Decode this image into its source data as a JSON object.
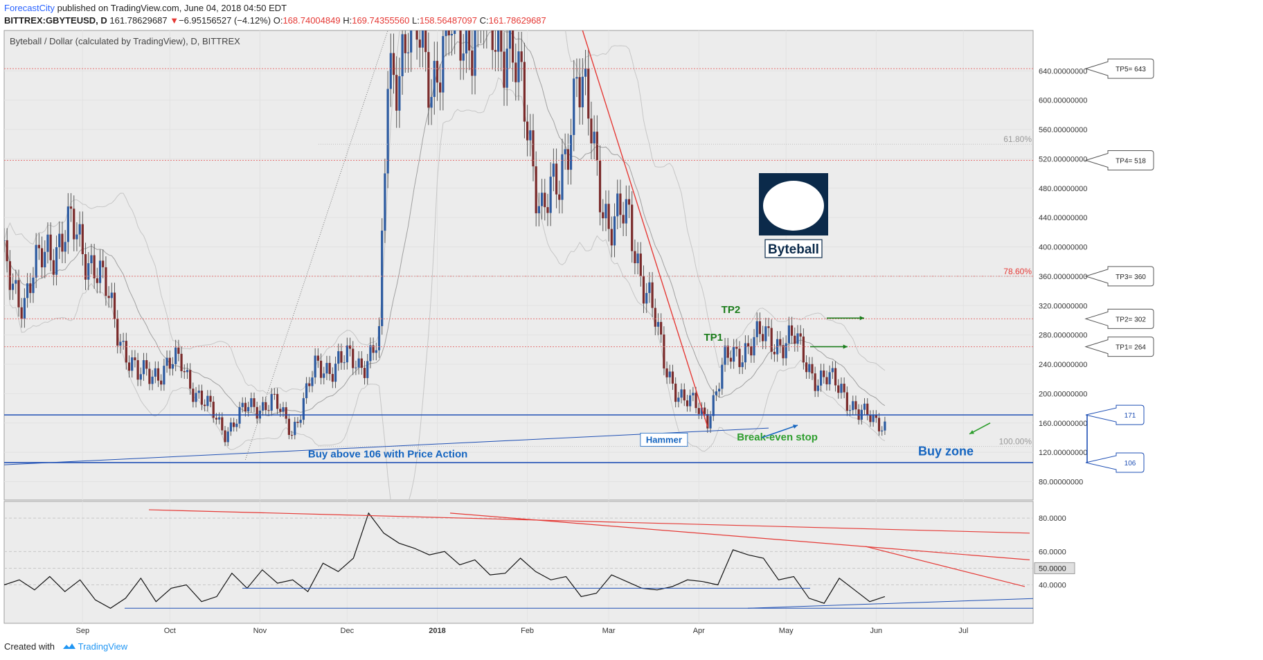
{
  "header": {
    "author": "ForecastCity",
    "published_text": "published on TradingView.com, June 04, 2018 04:50 EDT",
    "symbol": "BITTREX:GBYTEUSD, D",
    "last": "161.78629687",
    "change_arrow": "▼",
    "change": "−6.95156527 (−4.12%)",
    "o_label": "O:",
    "o_value": "168.74004849",
    "h_label": "H:",
    "h_value": "169.74355560",
    "l_label": "L:",
    "l_value": "158.56487097",
    "c_label": "C:",
    "c_value": "161.78629687"
  },
  "footer": {
    "created_with": "Created with",
    "brand": "TradingView"
  },
  "chart_data": {
    "type": "candlestick",
    "title": "Byteball / Dollar (calculated by TradingView), D, BITTREX",
    "logo_text": "Byteball",
    "price_axis": {
      "ylim": [
        55,
        695
      ],
      "ticks": [
        "80.00000000",
        "120.00000000",
        "160.00000000",
        "200.00000000",
        "240.00000000",
        "280.00000000",
        "320.00000000",
        "360.00000000",
        "400.00000000",
        "440.00000000",
        "480.00000000",
        "520.00000000",
        "560.00000000",
        "600.00000000",
        "640.00000000"
      ]
    },
    "x_axis": {
      "range": [
        "2017-08-05",
        "2018-07-25"
      ],
      "labels": [
        {
          "text": "Sep",
          "date": "2017-09-01"
        },
        {
          "text": "Oct",
          "date": "2017-10-01"
        },
        {
          "text": "Nov",
          "date": "2017-11-01"
        },
        {
          "text": "Dec",
          "date": "2017-12-01"
        },
        {
          "text": "2018",
          "date": "2018-01-01",
          "bold": true
        },
        {
          "text": "Feb",
          "date": "2018-02-01"
        },
        {
          "text": "Mar",
          "date": "2018-03-01"
        },
        {
          "text": "Apr",
          "date": "2018-04-01"
        },
        {
          "text": "May",
          "date": "2018-05-01"
        },
        {
          "text": "Jun",
          "date": "2018-06-01"
        },
        {
          "text": "Jul",
          "date": "2018-07-01"
        }
      ]
    },
    "closes": [
      {
        "date": "2017-08-05",
        "close": 370
      },
      {
        "date": "2017-08-12",
        "close": 330
      },
      {
        "date": "2017-08-20",
        "close": 400
      },
      {
        "date": "2017-08-28",
        "close": 420
      },
      {
        "date": "2017-09-05",
        "close": 380
      },
      {
        "date": "2017-09-12",
        "close": 300
      },
      {
        "date": "2017-09-20",
        "close": 220
      },
      {
        "date": "2017-09-28",
        "close": 235
      },
      {
        "date": "2017-10-05",
        "close": 240
      },
      {
        "date": "2017-10-12",
        "close": 190
      },
      {
        "date": "2017-10-20",
        "close": 150
      },
      {
        "date": "2017-10-28",
        "close": 180
      },
      {
        "date": "2017-11-05",
        "close": 190
      },
      {
        "date": "2017-11-12",
        "close": 150
      },
      {
        "date": "2017-11-20",
        "close": 230
      },
      {
        "date": "2017-11-28",
        "close": 245
      },
      {
        "date": "2017-12-05",
        "close": 240
      },
      {
        "date": "2017-12-12",
        "close": 270
      },
      {
        "date": "2017-12-15",
        "close": 620
      },
      {
        "date": "2017-12-22",
        "close": 700
      },
      {
        "date": "2017-12-30",
        "close": 640
      },
      {
        "date": "2018-01-08",
        "close": 700
      },
      {
        "date": "2018-01-16",
        "close": 700
      },
      {
        "date": "2018-01-25",
        "close": 690
      },
      {
        "date": "2018-02-01",
        "close": 560
      },
      {
        "date": "2018-02-06",
        "close": 460
      },
      {
        "date": "2018-02-12",
        "close": 470
      },
      {
        "date": "2018-02-18",
        "close": 650
      },
      {
        "date": "2018-02-25",
        "close": 500
      },
      {
        "date": "2018-03-01",
        "close": 440
      },
      {
        "date": "2018-03-08",
        "close": 430
      },
      {
        "date": "2018-03-15",
        "close": 330
      },
      {
        "date": "2018-03-20",
        "close": 240
      },
      {
        "date": "2018-03-27",
        "close": 190
      },
      {
        "date": "2018-04-04",
        "close": 170
      },
      {
        "date": "2018-04-10",
        "close": 240
      },
      {
        "date": "2018-04-18",
        "close": 270
      },
      {
        "date": "2018-04-25",
        "close": 275
      },
      {
        "date": "2018-05-04",
        "close": 270
      },
      {
        "date": "2018-05-12",
        "close": 220
      },
      {
        "date": "2018-05-20",
        "close": 210
      },
      {
        "date": "2018-05-26",
        "close": 170
      },
      {
        "date": "2018-06-04",
        "close": 162
      }
    ],
    "levels": [
      {
        "price": 643,
        "label": "TP5= 643",
        "style": "red-dotted"
      },
      {
        "price": 518,
        "label": "TP4= 518",
        "style": "red-dotted"
      },
      {
        "price": 360,
        "label": "TP3= 360",
        "style": "red-dotted"
      },
      {
        "price": 302,
        "label": "TP2= 302",
        "style": "red-dotted"
      },
      {
        "price": 264,
        "label": "TP1= 264",
        "style": "red-dotted"
      },
      {
        "price": 171,
        "label": "171",
        "style": "blue-solid"
      },
      {
        "price": 106,
        "label": "106",
        "style": "blue-solid"
      }
    ],
    "fib_levels": [
      {
        "price": 540,
        "label": "61.80%",
        "color": "#999999"
      },
      {
        "price": 360,
        "label": "78.60%",
        "color": "#e53935"
      },
      {
        "price": 128,
        "label": "100.00%",
        "color": "#999999"
      }
    ],
    "annotations": [
      {
        "text": "TP2",
        "date": "2018-04-12",
        "price": 310,
        "color": "#1b7d1b"
      },
      {
        "text": "TP1",
        "date": "2018-04-06",
        "price": 272,
        "color": "#1b7d1b"
      },
      {
        "text": "Hammer",
        "date": "2018-03-20",
        "price": 133,
        "color": "#1565c0"
      },
      {
        "text": "Break-even stop",
        "date": "2018-04-28",
        "price": 136,
        "color": "#2e9e2e"
      },
      {
        "text": "Buy above 106 with Price Action",
        "date": "2017-12-15",
        "price": 113,
        "color": "#1565c0"
      },
      {
        "text": "Buy zone",
        "date": "2018-06-25",
        "price": 116,
        "color": "#1565c0"
      }
    ],
    "oscillator": {
      "ylim": [
        17,
        90
      ],
      "ticks": [
        "80.0000",
        "60.0000",
        "40.0000"
      ],
      "current": "50.0000",
      "values": [
        40,
        43,
        37,
        45,
        36,
        43,
        31,
        26,
        32,
        44,
        30,
        38,
        40,
        30,
        33,
        47,
        38,
        49,
        41,
        43,
        36,
        53,
        48,
        56,
        83,
        71,
        65,
        62,
        58,
        60,
        52,
        55,
        46,
        47,
        56,
        48,
        43,
        45,
        33,
        35,
        46,
        42,
        38,
        37,
        39,
        43,
        42,
        40,
        61,
        58,
        56,
        43,
        45,
        32,
        29,
        44,
        37,
        30,
        33
      ]
    }
  }
}
